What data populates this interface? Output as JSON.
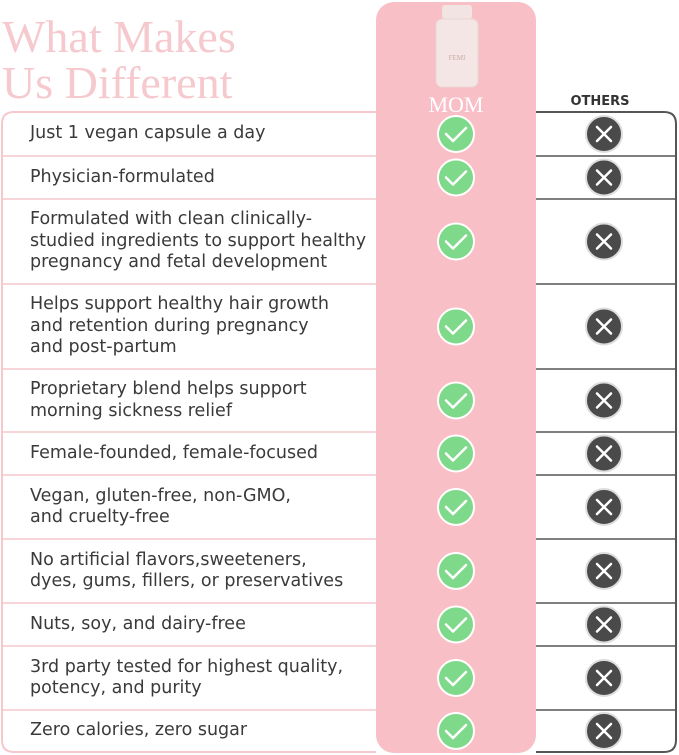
{
  "header": {
    "title_lines": [
      "What Makes",
      "Us Different"
    ]
  },
  "columns": {
    "ours": "MOM",
    "others": "OTHERS"
  },
  "rows": [
    {
      "feature": [
        "Just 1 vegan capsule a day"
      ]
    },
    {
      "feature": [
        "Physician-formulated"
      ]
    },
    {
      "feature": [
        "Formulated with clean clinically-",
        "studied ingredients to support healthy",
        "pregnancy and fetal development"
      ]
    },
    {
      "feature": [
        "Helps support healthy hair growth",
        "and retention during pregnancy",
        "and post-partum"
      ]
    },
    {
      "feature": [
        "Proprietary blend helps support",
        "morning sickness relief"
      ]
    },
    {
      "feature": [
        "Female-founded, female-focused"
      ]
    },
    {
      "feature": [
        "Vegan, gluten-free, non-GMO,",
        "and cruelty-free"
      ]
    },
    {
      "feature": [
        "No artificial flavors,sweeteners,",
        "dyes, gums, fillers, or preservatives"
      ]
    },
    {
      "feature": [
        "Nuts, soy, and dairy-free"
      ]
    },
    {
      "feature": [
        "3rd party tested for highest quality,",
        "potency, and purity"
      ]
    },
    {
      "feature": [
        "Zero calories, zero sugar"
      ]
    }
  ]
}
